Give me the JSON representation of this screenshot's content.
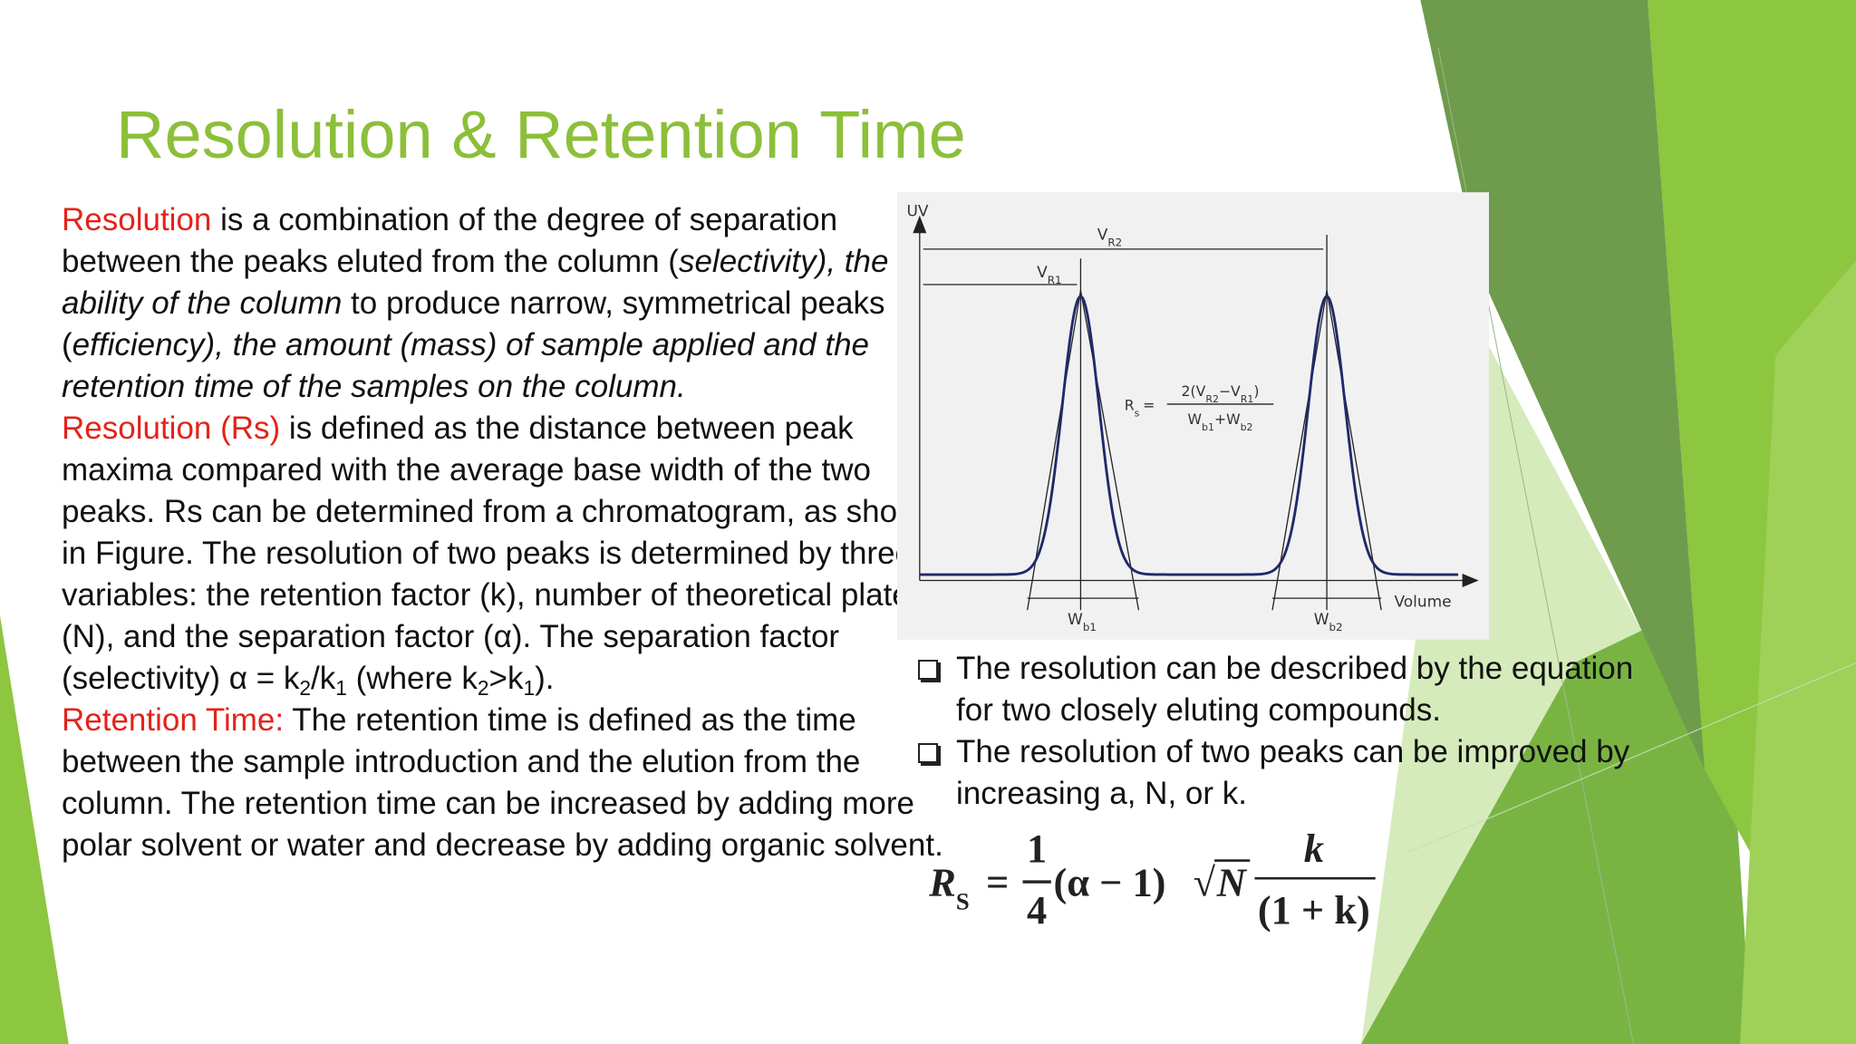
{
  "title": "Resolution & Retention Time",
  "body": [
    [
      {
        "text": "Resolution",
        "style": "red"
      },
      {
        "text": " is a combination of the degree of separation between the peaks eluted from the column ("
      },
      {
        "text": "selectivity), the ability of the column",
        "style": "italic"
      },
      {
        "text": " to produce narrow, symmetrical peaks ("
      },
      {
        "text": "efficiency), the amount (mass) of sample applied and the retention time of the samples on the column.",
        "style": "italic"
      }
    ],
    [
      {
        "text": "Resolution (Rs)",
        "style": "red"
      },
      {
        "text": " is defined as the distance between peak maxima compared with the average base width of the two peaks. Rs can be determined from a chromatogram, as shown in Figure. The resolution of two peaks is determined by three variables: the retention factor (k), number of theoretical plates (N), and the separation factor (α). The separation factor (selectivity) α = k"
      },
      {
        "text": "2",
        "style": "sub"
      },
      {
        "text": "/k"
      },
      {
        "text": "1",
        "style": "sub"
      },
      {
        "text": " (where k"
      },
      {
        "text": "2",
        "style": "sub"
      },
      {
        "text": ">k"
      },
      {
        "text": "1",
        "style": "sub"
      },
      {
        "text": ")."
      }
    ],
    [
      {
        "text": "Retention Time:",
        "style": "red"
      },
      {
        "text": " The retention time is defined as the time between the sample introduction and the elution from the column. The retention time can be increased by adding more polar solvent or water and decrease by adding organic solvent."
      }
    ]
  ],
  "figure": {
    "axis_y": "UV",
    "axis_x": "Volume",
    "vr1": {
      "main": "V",
      "sub": "R1"
    },
    "vr2": {
      "main": "V",
      "sub": "R2"
    },
    "wb1": {
      "main": "W",
      "sub": "b1"
    },
    "wb2": {
      "main": "W",
      "sub": "b2"
    },
    "rs_formula": {
      "lhs": {
        "main": "R",
        "sub": "s"
      },
      "eq": "=",
      "numerator": [
        {
          "text": "2(V"
        },
        {
          "text": "R2",
          "style": "sub"
        },
        {
          "text": "−V"
        },
        {
          "text": "R1",
          "style": "sub"
        },
        {
          "text": ")"
        }
      ],
      "denominator": [
        {
          "text": "W"
        },
        {
          "text": "b1",
          "style": "sub"
        },
        {
          "text": "+W"
        },
        {
          "text": "b2",
          "style": "sub"
        }
      ]
    }
  },
  "bullets": [
    "The resolution can be described by the equation for two closely eluting compounds.",
    "The resolution of two peaks can be improved by increasing a, N, or k."
  ],
  "equation": {
    "lhs": {
      "main": "R",
      "sub": "S"
    },
    "eq": "=",
    "frac1": {
      "num": "1",
      "den": "4"
    },
    "middle": "(α − 1)",
    "root": "√",
    "radicand": "N",
    "frac2": {
      "num": "k",
      "den": "(1 + k)"
    }
  }
}
